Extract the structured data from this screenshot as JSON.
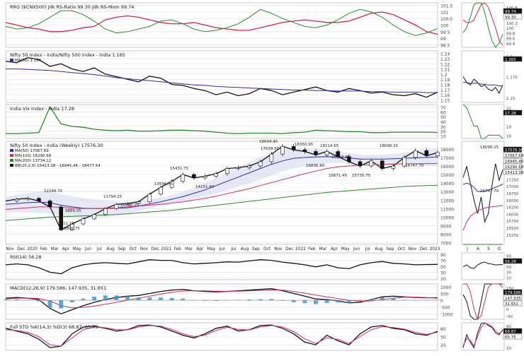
{
  "colors": {
    "price_up": "#ffffff",
    "price_down": "#111111",
    "ma50": "#2f2fa0",
    "ma100": "#d0305a",
    "ma200": "#2a8a2a",
    "bb_fill": "#d7d9ef",
    "rs_ratio": "#c8284a",
    "rs_mom": "#2a8a2a",
    "black": "#111111",
    "green": "#2a8a2a",
    "grid": "#dfdfdf",
    "macd_hist": "#3a8fd0"
  },
  "x_axis_labels": [
    "Nov",
    "Dec",
    "2020",
    "Feb",
    "Mar",
    "Apr",
    "May",
    "Jun",
    "Jul",
    "Aug",
    "Sep",
    "Oct",
    "Nov",
    "Dec",
    "2021",
    "Feb",
    "Mar",
    "Apr",
    "May",
    "Jun",
    "Jul",
    "Aug",
    "Sep",
    "Oct",
    "Nov",
    "Dec",
    "2022",
    "Feb",
    "Mar",
    "Apr",
    "May",
    "Jun",
    "Jul",
    "Aug",
    "Sep",
    "Oct",
    "Nov",
    "Dec",
    "2023"
  ],
  "side_x_labels": [
    "J",
    "A",
    "S",
    "O"
  ],
  "chart_data": [
    {
      "type": "line",
      "title": "RRG ($CNX500) Jdk RS-Ratio 99.30 Jdk RS-Mom 99.74",
      "y_ticks": [
        101.5,
        101.0,
        100.5,
        100.0,
        99.5,
        99.0,
        98.5
      ],
      "ylim": [
        98.3,
        101.7
      ],
      "series": [
        {
          "name": "Jdk RS-Ratio",
          "values": [
            100.2,
            100.0,
            99.8,
            99.7,
            99.5,
            99.5,
            99.6,
            99.8,
            99.9,
            100.4,
            100.6,
            100.7,
            100.6,
            100.4,
            100.2,
            100.1,
            100.1,
            100.2,
            100.0,
            99.8,
            99.7,
            99.6,
            99.6,
            99.8,
            100.0,
            100.2,
            100.3,
            100.4,
            100.3,
            100.2,
            100.2,
            100.3,
            100.6,
            100.9,
            101.0,
            100.8,
            100.4,
            100.0,
            99.5,
            99.3
          ],
          "last": 99.3
        },
        {
          "name": "Jdk RS-Mom",
          "values": [
            99.9,
            99.7,
            99.8,
            100.1,
            100.6,
            101.1,
            101.1,
            100.8,
            100.3,
            99.7,
            99.4,
            99.5,
            99.7,
            99.9,
            100.3,
            100.4,
            100.1,
            99.7,
            99.5,
            99.6,
            99.8,
            100.1,
            100.6,
            101.2,
            100.9,
            100.5,
            100.2,
            99.9,
            99.8,
            100.0,
            100.4,
            100.9,
            101.2,
            101.0,
            100.6,
            100.0,
            99.5,
            99.2,
            99.4,
            99.74
          ],
          "last": 99.74
        }
      ],
      "side_ticks": [
        100.8,
        100.6,
        100.4,
        100.2,
        100.0,
        99.8,
        99.6,
        99.4
      ],
      "side_labels": [
        "99.74",
        "99.30"
      ]
    },
    {
      "type": "line",
      "title": "Nifty 50 Index - India/Nifty 500 Index - India 1.165",
      "legend": [
        "MA(50) 1.164"
      ],
      "y_ticks": [
        1.24,
        1.23,
        1.22,
        1.21,
        1.2,
        1.19,
        1.18,
        1.17,
        1.16,
        1.15
      ],
      "ylim": [
        1.145,
        1.245
      ],
      "series": [
        {
          "name": "Nifty 50 / Nifty 500",
          "values": [
            1.225,
            1.222,
            1.232,
            1.228,
            1.215,
            1.22,
            1.21,
            1.205,
            1.212,
            1.2,
            1.195,
            1.19,
            1.185,
            1.196,
            1.192,
            1.18,
            1.178,
            1.172,
            1.168,
            1.16,
            1.165,
            1.158,
            1.162,
            1.172,
            1.168,
            1.16,
            1.165,
            1.17,
            1.175,
            1.168,
            1.165,
            1.172,
            1.168,
            1.163,
            1.165,
            1.16,
            1.158,
            1.162,
            1.155,
            1.165
          ]
        },
        {
          "name": "MA(50)",
          "values": [
            1.21,
            1.21,
            1.209,
            1.208,
            1.207,
            1.205,
            1.203,
            1.201,
            1.199,
            1.196,
            1.193,
            1.191,
            1.189,
            1.187,
            1.185,
            1.183,
            1.181,
            1.179,
            1.178,
            1.176,
            1.175,
            1.174,
            1.173,
            1.172,
            1.171,
            1.17,
            1.169,
            1.169,
            1.168,
            1.168,
            1.167,
            1.167,
            1.167,
            1.166,
            1.166,
            1.165,
            1.165,
            1.165,
            1.164,
            1.164
          ]
        }
      ],
      "side_ticks": [
        1.2,
        1.175,
        1.15
      ],
      "side_labels": [
        "1.165"
      ]
    },
    {
      "type": "line",
      "title": "India Vix Index - India 17.28",
      "y_ticks": [
        70,
        60,
        50,
        40,
        30,
        20,
        10
      ],
      "ylim": [
        5,
        75
      ],
      "series": [
        {
          "name": "India VIX",
          "values": [
            15,
            15,
            16,
            17,
            70,
            35,
            30,
            28,
            24,
            22,
            21,
            22,
            20,
            20,
            21,
            22,
            22,
            21,
            20,
            18,
            16,
            15,
            16,
            16,
            16,
            15,
            17,
            18,
            22,
            21,
            20,
            19,
            19,
            17,
            17,
            18,
            18,
            18,
            18,
            17.28
          ]
        }
      ],
      "side_ticks": [
        21,
        19,
        18
      ],
      "side_labels": [
        "17.28"
      ]
    },
    {
      "type": "line",
      "title": "Nifty 50 Index - India (Weekly) 17576.30",
      "legend": [
        "MA(50) 17067.69",
        "MA(100) 16290.68",
        "MA(200) 13734.12",
        "BB(20,2.0) 15413.38 - 16945.46 - 18477.54"
      ],
      "y_ticks": [
        18000,
        17000,
        16000,
        15000,
        14000,
        13000,
        12000,
        11000,
        10000,
        9000,
        8000,
        7000
      ],
      "ylim": [
        6800,
        18900
      ],
      "annotations": [
        "12246.70",
        "9889.05",
        "7511.10",
        "8806.75",
        "11794.25",
        "10790.20",
        "15431.75",
        "13596.75",
        "14151.40",
        "18604.45",
        "17639.50",
        "18350.95",
        "18114.65",
        "16836.80",
        "16793.85",
        "15671.45",
        "15735.75",
        "18096.15",
        "16747.70"
      ],
      "series": [
        {
          "name": "Nifty 50 close",
          "values": [
            11900,
            12100,
            12200,
            11900,
            11200,
            8500,
            9200,
            9800,
            10300,
            11000,
            11500,
            11600,
            11800,
            12700,
            13500,
            14200,
            15000,
            14600,
            14800,
            15100,
            15700,
            15800,
            16000,
            16500,
            17400,
            18300,
            17900,
            17700,
            17300,
            17700,
            17100,
            16500,
            16000,
            16600,
            15700,
            16000,
            17000,
            17800,
            17200,
            17576.3
          ]
        },
        {
          "name": "MA(50)",
          "values": [
            11500,
            11600,
            11700,
            11750,
            11700,
            11400,
            11200,
            11050,
            11000,
            11000,
            11050,
            11100,
            11300,
            11550,
            11800,
            12100,
            12400,
            12800,
            13200,
            13700,
            14200,
            14700,
            15200,
            15700,
            16200,
            16600,
            16900,
            17000,
            17050,
            17100,
            17050,
            16950,
            16800,
            16800,
            16800,
            16850,
            16900,
            16950,
            17000,
            17067.69
          ]
        },
        {
          "name": "MA(100)",
          "values": [
            10900,
            11000,
            11100,
            11200,
            11200,
            11150,
            11050,
            11000,
            11000,
            11050,
            11100,
            11200,
            11300,
            11400,
            11500,
            11650,
            11800,
            12000,
            12200,
            12450,
            12750,
            13050,
            13350,
            13700,
            14050,
            14400,
            14750,
            15100,
            15400,
            15700,
            15900,
            16000,
            16100,
            16150,
            16200,
            16230,
            16250,
            16260,
            16280,
            16290.68
          ]
        },
        {
          "name": "MA(200)",
          "values": [
            9600,
            9700,
            9800,
            9900,
            10000,
            10050,
            10100,
            10150,
            10200,
            10250,
            10300,
            10400,
            10500,
            10600,
            10700,
            10800,
            10950,
            11100,
            11250,
            11400,
            11550,
            11700,
            11850,
            12000,
            12150,
            12300,
            12450,
            12600,
            12750,
            12900,
            13000,
            13100,
            13200,
            13300,
            13400,
            13500,
            13600,
            13650,
            13700,
            13734.12
          ]
        }
      ],
      "side_ticks": [
        18250,
        18000,
        17750,
        17500,
        17250,
        17000,
        16750,
        16500,
        16250,
        16000,
        15750,
        15500,
        15250
      ],
      "side_labels": [
        "17576.30",
        "17067.69",
        "16945.46",
        "16290.68",
        "15413.38"
      ],
      "side_annotations": [
        "18096.15",
        "16747.70"
      ]
    },
    {
      "type": "line",
      "title": "RSI(14) 56.28",
      "y_ticks": [
        90,
        70,
        50,
        30,
        10
      ],
      "ylim": [
        5,
        95
      ],
      "series": [
        {
          "name": "RSI(14)",
          "values": [
            55,
            58,
            55,
            45,
            30,
            25,
            45,
            55,
            60,
            62,
            60,
            58,
            65,
            72,
            70,
            70,
            62,
            58,
            60,
            62,
            65,
            64,
            68,
            72,
            70,
            64,
            60,
            55,
            48,
            55,
            45,
            42,
            55,
            62,
            66,
            60,
            58,
            55,
            56,
            56.28
          ]
        }
      ],
      "side_ticks": [
        90,
        70,
        50,
        30,
        10
      ],
      "side_labels": [
        "56.28"
      ]
    },
    {
      "type": "line",
      "title": "MACD(12,26,9) 179.586, 147.935, 31.651",
      "y_ticks": [
        1000,
        500,
        0,
        -500,
        -1000
      ],
      "ylim": [
        -1400,
        1200
      ],
      "series": [
        {
          "name": "MACD",
          "values": [
            150,
            200,
            150,
            50,
            -600,
            -1000,
            -700,
            -400,
            -150,
            50,
            200,
            300,
            350,
            500,
            650,
            750,
            800,
            700,
            650,
            620,
            650,
            700,
            750,
            800,
            850,
            700,
            500,
            300,
            100,
            50,
            -50,
            -200,
            -150,
            50,
            250,
            300,
            250,
            200,
            180,
            179.586
          ]
        },
        {
          "name": "Signal",
          "values": [
            100,
            150,
            160,
            130,
            -50,
            -400,
            -550,
            -520,
            -420,
            -300,
            -150,
            0,
            150,
            300,
            450,
            580,
            680,
            700,
            690,
            670,
            660,
            670,
            690,
            720,
            760,
            740,
            650,
            520,
            380,
            250,
            120,
            0,
            -80,
            -50,
            50,
            150,
            220,
            220,
            200,
            147.935
          ]
        }
      ],
      "side_ticks": [
        150,
        100,
        50,
        0,
        -50
      ],
      "side_labels": [
        "179.586",
        "147.935",
        "31.651"
      ]
    },
    {
      "type": "line",
      "title": "Full STO %K(14,3) %D(3) 68.87, 65.75",
      "y_ticks": [
        80,
        50,
        20
      ],
      "ylim": [
        0,
        100
      ],
      "series": [
        {
          "name": "%K",
          "values": [
            80,
            70,
            60,
            40,
            10,
            15,
            60,
            85,
            88,
            80,
            70,
            75,
            90,
            92,
            85,
            70,
            55,
            45,
            60,
            80,
            88,
            70,
            75,
            90,
            92,
            80,
            60,
            30,
            20,
            55,
            35,
            20,
            60,
            85,
            90,
            80,
            75,
            60,
            55,
            68.87
          ]
        },
        {
          "name": "%D",
          "values": [
            75,
            72,
            65,
            50,
            20,
            15,
            45,
            75,
            85,
            82,
            75,
            74,
            85,
            90,
            88,
            76,
            60,
            50,
            55,
            72,
            84,
            76,
            74,
            85,
            90,
            85,
            68,
            42,
            25,
            45,
            40,
            25,
            50,
            75,
            86,
            83,
            77,
            65,
            58,
            65.75
          ]
        }
      ],
      "side_ticks": [
        80,
        50,
        20
      ],
      "side_labels": [
        "68.87",
        "65.75"
      ]
    }
  ]
}
